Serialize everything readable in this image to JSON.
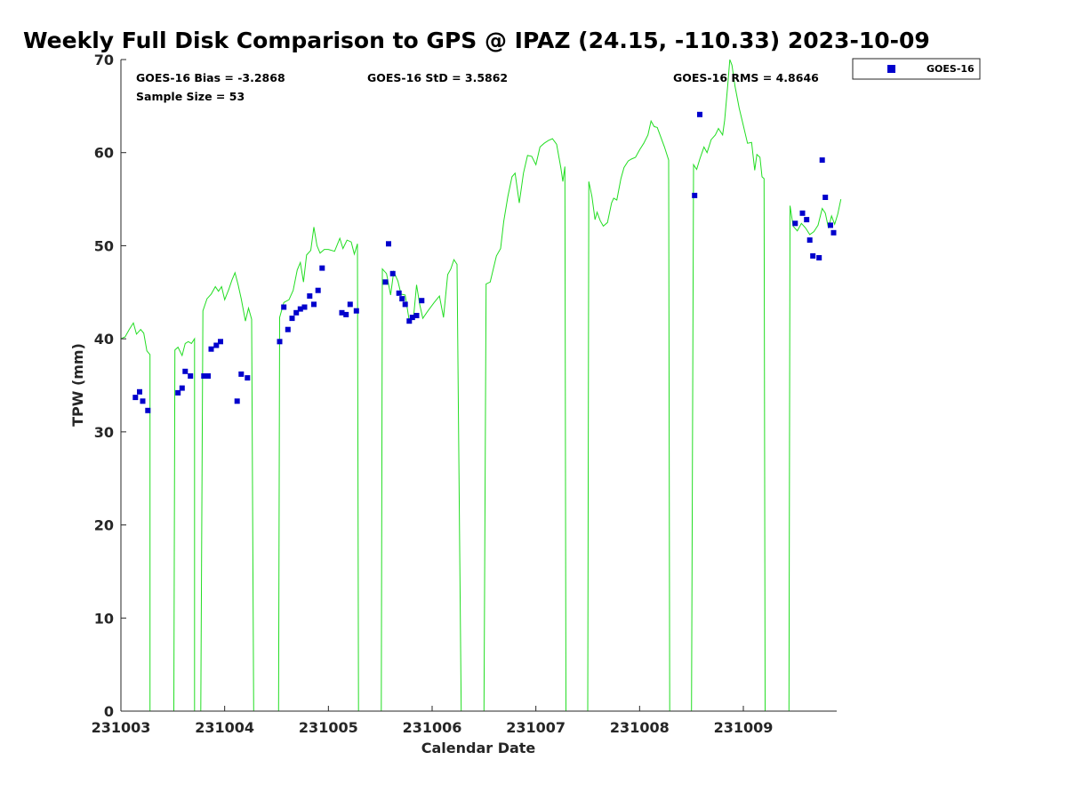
{
  "chart_data": {
    "type": "scatter",
    "title": "Weekly Full Disk Comparison to GPS @ IPAZ (24.15, -110.33) 2023-10-09",
    "xlabel": "Calendar Date",
    "ylabel": "TPW (mm)",
    "xlim": [
      231003.0,
      231009.9
    ],
    "ylim": [
      0,
      70
    ],
    "xticks": [
      231003,
      231004,
      231005,
      231006,
      231007,
      231008,
      231009
    ],
    "xtick_labels": [
      "231003",
      "231004",
      "231005",
      "231006",
      "231007",
      "231008",
      "231009"
    ],
    "yticks": [
      0,
      10,
      20,
      30,
      40,
      50,
      60,
      70
    ],
    "ytick_labels": [
      "0",
      "10",
      "20",
      "30",
      "40",
      "50",
      "60",
      "70"
    ],
    "grid": false,
    "legend_position": "outside-top-right",
    "stats": {
      "bias": "GOES-16 Bias = -3.2868",
      "std": "GOES-16 StD = 3.5862",
      "rms": "GOES-16 RMS = 4.8646",
      "sample_size": "Sample Size = 53"
    },
    "series": [
      {
        "name": "GOES-16",
        "kind": "scatter",
        "color": "#0000cc",
        "marker": "square",
        "x": [
          231003.14,
          231003.18,
          231003.21,
          231003.26,
          231003.55,
          231003.59,
          231003.62,
          231003.67,
          231003.8,
          231003.84,
          231003.87,
          231003.92,
          231003.96,
          231004.12,
          231004.16,
          231004.22,
          231004.53,
          231004.57,
          231004.61,
          231004.65,
          231004.69,
          231004.73,
          231004.77,
          231004.82,
          231004.86,
          231004.9,
          231004.94,
          231005.13,
          231005.17,
          231005.21,
          231005.27,
          231005.55,
          231005.58,
          231005.62,
          231005.68,
          231005.71,
          231005.74,
          231005.78,
          231005.81,
          231005.85,
          231005.9,
          231008.53,
          231008.58,
          231009.5,
          231009.57,
          231009.61,
          231009.64,
          231009.67,
          231009.73,
          231009.76,
          231009.79,
          231009.84,
          231009.87
        ],
        "y": [
          33.7,
          34.3,
          33.3,
          32.3,
          34.2,
          34.7,
          36.5,
          36.0,
          36.0,
          36.0,
          38.9,
          39.3,
          39.7,
          33.3,
          36.2,
          35.8,
          39.7,
          43.4,
          41.0,
          42.2,
          42.8,
          43.2,
          43.4,
          44.6,
          43.7,
          45.2,
          47.6,
          42.8,
          42.6,
          43.7,
          43.0,
          46.1,
          50.2,
          47.0,
          44.9,
          44.3,
          43.7,
          41.9,
          42.3,
          42.5,
          44.1,
          55.4,
          64.1,
          52.4,
          53.5,
          52.8,
          50.6,
          48.9,
          48.7,
          59.2,
          55.2,
          52.2,
          51.4
        ]
      },
      {
        "name": "",
        "kind": "line",
        "color": "#22dd22",
        "segments": [
          [
            [
              231003.0,
              40.0
            ],
            [
              231003.04,
              40.2
            ],
            [
              231003.08,
              41.0
            ],
            [
              231003.12,
              41.7
            ],
            [
              231003.15,
              40.5
            ],
            [
              231003.19,
              41.0
            ],
            [
              231003.22,
              40.6
            ],
            [
              231003.25,
              38.7
            ],
            [
              231003.28,
              38.3
            ],
            [
              231003.28,
              0.0
            ]
          ],
          [
            [
              231003.51,
              0.0
            ],
            [
              231003.52,
              38.8
            ],
            [
              231003.55,
              39.1
            ],
            [
              231003.59,
              38.2
            ],
            [
              231003.62,
              39.5
            ],
            [
              231003.65,
              39.7
            ],
            [
              231003.68,
              39.5
            ],
            [
              231003.71,
              40.0
            ],
            [
              231003.71,
              0.0
            ]
          ],
          [
            [
              231003.77,
              0.0
            ],
            [
              231003.79,
              43.0
            ],
            [
              231003.83,
              44.3
            ],
            [
              231003.87,
              44.8
            ],
            [
              231003.91,
              45.6
            ],
            [
              231003.94,
              45.1
            ],
            [
              231003.97,
              45.6
            ],
            [
              231004.0,
              44.2
            ],
            [
              231004.04,
              45.3
            ],
            [
              231004.07,
              46.3
            ],
            [
              231004.1,
              47.1
            ],
            [
              231004.13,
              45.8
            ],
            [
              231004.16,
              44.3
            ],
            [
              231004.2,
              41.9
            ],
            [
              231004.23,
              43.3
            ],
            [
              231004.26,
              42.1
            ],
            [
              231004.28,
              0.0
            ]
          ],
          [
            [
              231004.52,
              0.0
            ],
            [
              231004.53,
              42.3
            ],
            [
              231004.57,
              43.9
            ],
            [
              231004.62,
              44.2
            ],
            [
              231004.66,
              45.2
            ],
            [
              231004.7,
              47.4
            ],
            [
              231004.73,
              48.2
            ],
            [
              231004.76,
              46.1
            ],
            [
              231004.79,
              49.0
            ],
            [
              231004.83,
              49.5
            ],
            [
              231004.86,
              52.0
            ],
            [
              231004.89,
              50.0
            ],
            [
              231004.92,
              49.2
            ],
            [
              231004.96,
              49.6
            ],
            [
              231005.0,
              49.6
            ],
            [
              231005.06,
              49.4
            ],
            [
              231005.11,
              50.8
            ],
            [
              231005.14,
              49.7
            ],
            [
              231005.18,
              50.6
            ],
            [
              231005.22,
              50.4
            ],
            [
              231005.25,
              49.1
            ],
            [
              231005.28,
              50.2
            ],
            [
              231005.29,
              0.0
            ]
          ],
          [
            [
              231005.51,
              0.0
            ],
            [
              231005.52,
              47.5
            ],
            [
              231005.56,
              47.0
            ],
            [
              231005.6,
              44.7
            ],
            [
              231005.63,
              47.2
            ],
            [
              231005.67,
              46.2
            ],
            [
              231005.7,
              44.8
            ],
            [
              231005.74,
              44.7
            ],
            [
              231005.78,
              41.9
            ],
            [
              231005.82,
              42.2
            ],
            [
              231005.85,
              45.8
            ],
            [
              231005.88,
              43.7
            ],
            [
              231005.91,
              42.2
            ],
            [
              231005.96,
              43.0
            ],
            [
              231006.02,
              43.9
            ],
            [
              231006.07,
              44.6
            ],
            [
              231006.11,
              42.3
            ],
            [
              231006.15,
              46.9
            ],
            [
              231006.18,
              47.5
            ],
            [
              231006.21,
              48.5
            ],
            [
              231006.24,
              48.0
            ],
            [
              231006.28,
              0.0
            ]
          ],
          [
            [
              231006.5,
              0.0
            ],
            [
              231006.52,
              45.9
            ],
            [
              231006.56,
              46.1
            ],
            [
              231006.62,
              48.9
            ],
            [
              231006.66,
              49.7
            ],
            [
              231006.69,
              52.6
            ],
            [
              231006.73,
              55.3
            ],
            [
              231006.77,
              57.4
            ],
            [
              231006.8,
              57.8
            ],
            [
              231006.84,
              54.6
            ],
            [
              231006.88,
              57.8
            ],
            [
              231006.92,
              59.7
            ],
            [
              231006.96,
              59.6
            ],
            [
              231007.0,
              58.7
            ],
            [
              231007.04,
              60.6
            ],
            [
              231007.08,
              61.0
            ],
            [
              231007.12,
              61.3
            ],
            [
              231007.16,
              61.5
            ],
            [
              231007.2,
              60.9
            ],
            [
              231007.24,
              58.4
            ],
            [
              231007.26,
              56.9
            ],
            [
              231007.28,
              58.5
            ],
            [
              231007.29,
              0.0
            ]
          ],
          [
            [
              231007.5,
              0.0
            ],
            [
              231007.51,
              56.9
            ],
            [
              231007.54,
              55.3
            ],
            [
              231007.57,
              52.8
            ],
            [
              231007.59,
              53.6
            ],
            [
              231007.62,
              52.7
            ],
            [
              231007.65,
              52.1
            ],
            [
              231007.69,
              52.5
            ],
            [
              231007.73,
              54.6
            ],
            [
              231007.75,
              55.1
            ],
            [
              231007.78,
              54.9
            ],
            [
              231007.82,
              57.2
            ],
            [
              231007.85,
              58.4
            ],
            [
              231007.89,
              59.1
            ],
            [
              231007.92,
              59.3
            ],
            [
              231007.96,
              59.5
            ],
            [
              231008.0,
              60.3
            ],
            [
              231008.04,
              61.0
            ],
            [
              231008.08,
              61.9
            ],
            [
              231008.11,
              63.4
            ],
            [
              231008.14,
              62.8
            ],
            [
              231008.17,
              62.7
            ],
            [
              231008.2,
              61.8
            ],
            [
              231008.24,
              60.6
            ],
            [
              231008.28,
              59.2
            ],
            [
              231008.29,
              0.0
            ]
          ],
          [
            [
              231008.5,
              0.0
            ],
            [
              231008.52,
              58.7
            ],
            [
              231008.55,
              58.2
            ],
            [
              231008.58,
              59.3
            ],
            [
              231008.62,
              60.6
            ],
            [
              231008.65,
              60.0
            ],
            [
              231008.69,
              61.4
            ],
            [
              231008.73,
              61.9
            ],
            [
              231008.76,
              62.6
            ],
            [
              231008.8,
              61.9
            ],
            [
              231008.82,
              63.5
            ],
            [
              231008.85,
              67.3
            ],
            [
              231008.87,
              70.0
            ],
            [
              231008.89,
              69.4
            ],
            [
              231008.92,
              67.1
            ],
            [
              231008.96,
              64.8
            ],
            [
              231009.0,
              62.9
            ],
            [
              231009.04,
              61.0
            ],
            [
              231009.08,
              61.1
            ],
            [
              231009.11,
              58.1
            ],
            [
              231009.13,
              59.8
            ],
            [
              231009.16,
              59.5
            ],
            [
              231009.18,
              57.4
            ],
            [
              231009.2,
              57.2
            ],
            [
              231009.21,
              0.0
            ]
          ],
          [
            [
              231009.44,
              0.0
            ],
            [
              231009.45,
              54.3
            ],
            [
              231009.48,
              52.1
            ],
            [
              231009.52,
              51.6
            ],
            [
              231009.56,
              52.4
            ],
            [
              231009.6,
              51.9
            ],
            [
              231009.64,
              51.2
            ],
            [
              231009.68,
              51.5
            ],
            [
              231009.72,
              52.2
            ],
            [
              231009.76,
              54.0
            ],
            [
              231009.79,
              53.5
            ],
            [
              231009.82,
              51.9
            ],
            [
              231009.85,
              53.2
            ],
            [
              231009.88,
              52.3
            ],
            [
              231009.91,
              53.4
            ],
            [
              231009.94,
              55.0
            ]
          ]
        ]
      }
    ]
  }
}
